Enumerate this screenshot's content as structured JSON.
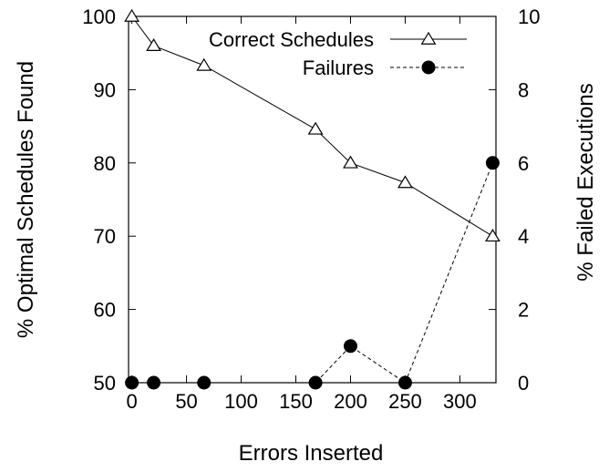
{
  "chart_data": {
    "type": "line",
    "xlabel": "Errors Inserted",
    "ylabel_left": "% Optimal Schedules Found",
    "ylabel_right": "% Failed Executions",
    "xlim": [
      -3,
      333
    ],
    "ylim_left": [
      50,
      100
    ],
    "ylim_right": [
      0,
      10
    ],
    "x_ticks": [
      0,
      50,
      100,
      150,
      200,
      250,
      300
    ],
    "y_ticks_left": [
      50,
      60,
      70,
      80,
      90,
      100
    ],
    "y_ticks_right": [
      0,
      2,
      4,
      6,
      8,
      10
    ],
    "grid": false,
    "legend_position": "top-right",
    "series": [
      {
        "name": "Correct Schedules",
        "axis": "left",
        "marker": "open-triangle",
        "line": "solid",
        "x": [
          0,
          20,
          66,
          168,
          200,
          250,
          330
        ],
        "y": [
          100,
          96,
          93.3,
          84.6,
          80,
          77.3,
          70
        ]
      },
      {
        "name": "Failures",
        "axis": "right",
        "marker": "filled-circle",
        "line": "dashed",
        "x": [
          0,
          20,
          66,
          168,
          200,
          250,
          330
        ],
        "y": [
          0,
          0,
          0,
          0,
          1,
          0,
          6
        ]
      }
    ]
  }
}
